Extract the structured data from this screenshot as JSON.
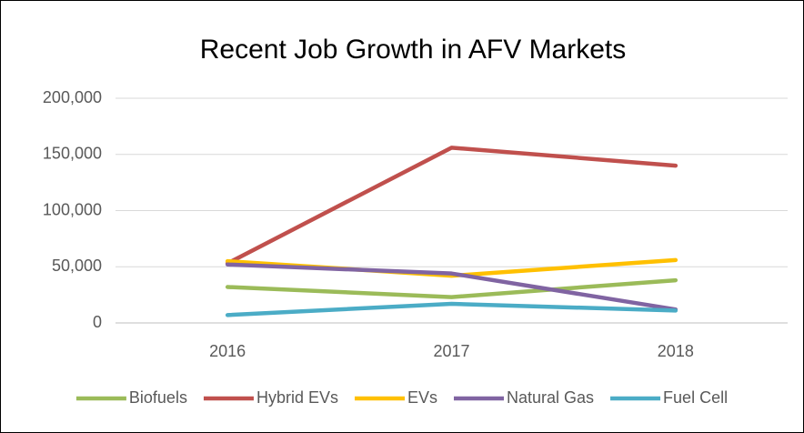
{
  "chart_data": {
    "type": "line",
    "title": "Recent Job Growth in AFV Markets",
    "categories": [
      "2016",
      "2017",
      "2018"
    ],
    "series": [
      {
        "name": "Biofuels",
        "color": "#9bbb59",
        "values": [
          32000,
          23000,
          38000
        ]
      },
      {
        "name": "Hybrid EVs",
        "color": "#c0504d",
        "values": [
          53000,
          156000,
          140000
        ]
      },
      {
        "name": "EVs",
        "color": "#ffc000",
        "values": [
          55000,
          42000,
          56000
        ]
      },
      {
        "name": "Natural Gas",
        "color": "#8064a2",
        "values": [
          52000,
          44000,
          12000
        ]
      },
      {
        "name": "Fuel Cell",
        "color": "#4bacc6",
        "values": [
          7000,
          17000,
          11000
        ]
      }
    ],
    "ylim": [
      0,
      200000
    ],
    "yticks": [
      0,
      {
        "value": 50000,
        "label": "50,000"
      },
      {
        "value": 100000,
        "label": "100,000"
      },
      {
        "value": 150000,
        "label": "150,000"
      },
      {
        "value": 200000,
        "label": "200,000"
      }
    ],
    "grid": true,
    "legend": "bottom"
  }
}
